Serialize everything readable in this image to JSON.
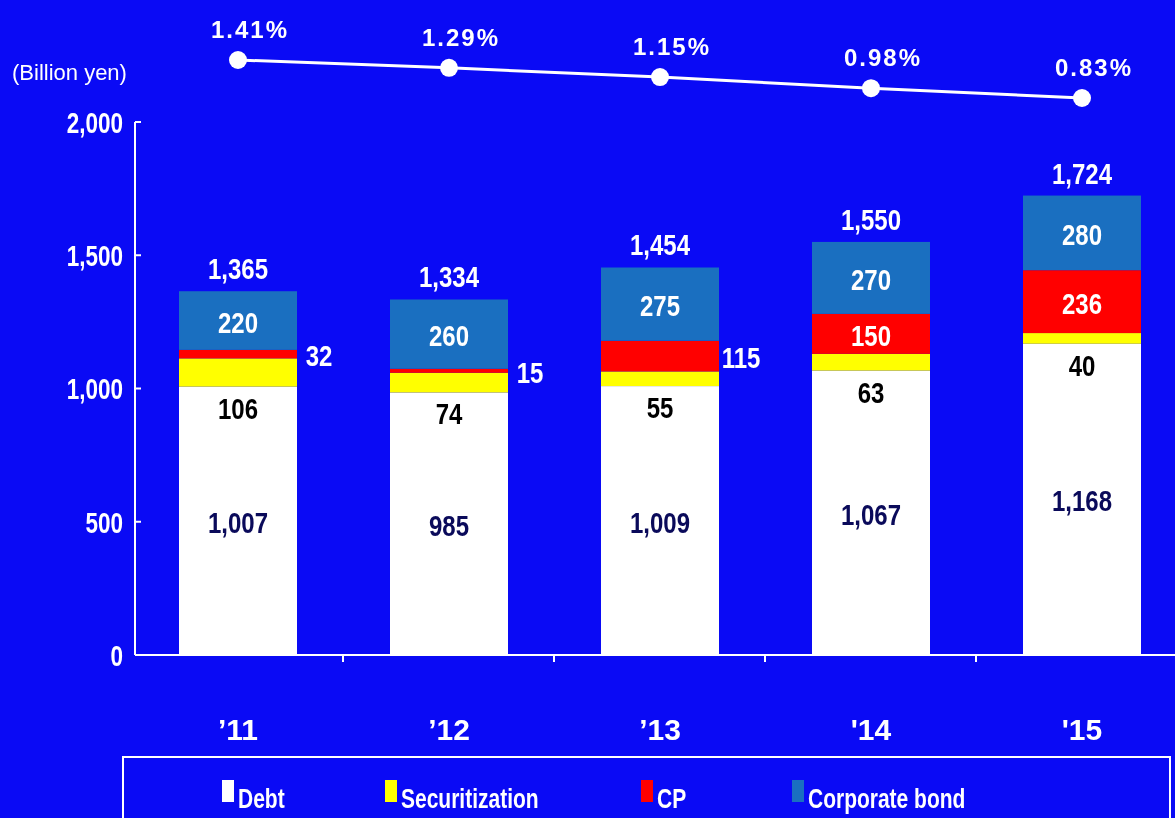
{
  "chart_data": [
    {
      "type": "line",
      "categories": [
        null,
        null,
        null,
        null,
        null
      ],
      "tick_labels": false,
      "series": [
        {
          "color": "#ffffff",
          "marker": "circle",
          "values": [
            1.41,
            1.29,
            1.15,
            0.98,
            0.83
          ],
          "value_labels": [
            "1.41%",
            "1.29%",
            "1.15%",
            "0.98%",
            "0.83%"
          ]
        }
      ]
    },
    {
      "type": "bar",
      "stacked": true,
      "ylabel": "(Billion yen)",
      "categories": [
        "’11",
        "’12",
        "’13",
        "'14",
        "'15"
      ],
      "ylim": [
        0,
        2000
      ],
      "yticks": [
        0,
        {
          "value": 500,
          "label": "500"
        },
        {
          "value": 1000,
          "label": "1,000"
        },
        {
          "value": 1500,
          "label": "1,500"
        },
        {
          "value": 2000,
          "label": "2,000"
        }
      ],
      "legend": "bottom",
      "series": [
        {
          "name": "Debt",
          "color": "#ffffff",
          "values": [
            1007,
            985,
            1009,
            1067,
            1168
          ],
          "value_labels": [
            "1,007",
            "985",
            "1,009",
            "1,067",
            "1,168"
          ]
        },
        {
          "name": "Securitization",
          "color": "#ffff00",
          "values": [
            106,
            74,
            55,
            63,
            40
          ],
          "value_labels": [
            "106",
            "74",
            "55",
            "63",
            "40"
          ]
        },
        {
          "name": "CP",
          "color": "#ff0000",
          "values": [
            32,
            15,
            115,
            150,
            236
          ],
          "value_labels": [
            "32",
            "15",
            "115",
            "150",
            "236"
          ]
        },
        {
          "name": "Corporate bond",
          "color": "#1a6fc0",
          "values": [
            220,
            260,
            275,
            270,
            280
          ],
          "value_labels": [
            "220",
            "260",
            "275",
            "270",
            "280"
          ]
        }
      ],
      "totals": [
        "1,365",
        "1,334",
        "1,454",
        "1,550",
        "1,724"
      ]
    }
  ]
}
